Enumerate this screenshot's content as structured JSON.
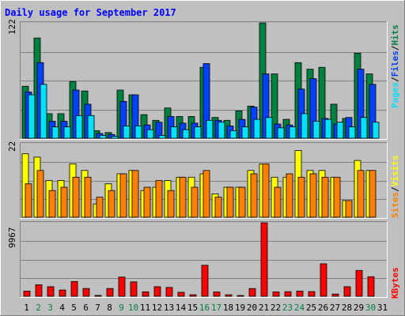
{
  "chart_data": [
    {
      "type": "bar",
      "title": "Daily usage for September 2017",
      "panel": "hits-files-pages",
      "ymax_label": "122",
      "ylim": [
        0,
        122
      ],
      "categories": [
        "1",
        "2",
        "3",
        "4",
        "5",
        "6",
        "7",
        "8",
        "9",
        "10",
        "11",
        "12",
        "13",
        "14",
        "15",
        "16",
        "17",
        "18",
        "19",
        "20",
        "21",
        "22",
        "23",
        "24",
        "25",
        "26",
        "27",
        "28",
        "29",
        "30",
        "31"
      ],
      "weekend_days": [
        "2",
        "3",
        "9",
        "10",
        "16",
        "17",
        "23",
        "24",
        "30"
      ],
      "series": [
        {
          "name": "Hits",
          "color": "#008040",
          "values": [
            55,
            106,
            26,
            26,
            60,
            50,
            8,
            6,
            51,
            46,
            25,
            19,
            32,
            23,
            23,
            75,
            22,
            19,
            29,
            34,
            122,
            68,
            20,
            80,
            73,
            75,
            36,
            21,
            90,
            68,
            0
          ]
        },
        {
          "name": "Files",
          "color": "#0040ff",
          "values": [
            49,
            80,
            18,
            18,
            51,
            36,
            5,
            4,
            39,
            46,
            14,
            17,
            23,
            16,
            16,
            79,
            19,
            13,
            20,
            33,
            68,
            15,
            14,
            52,
            63,
            21,
            15,
            22,
            73,
            57,
            0
          ]
        },
        {
          "name": "Pages",
          "color": "#00e0ff",
          "values": [
            46,
            57,
            12,
            12,
            24,
            24,
            3,
            2,
            13,
            13,
            9,
            3,
            12,
            9,
            12,
            19,
            17,
            8,
            12,
            20,
            22,
            11,
            12,
            26,
            18,
            20,
            17,
            12,
            22,
            17,
            0
          ]
        }
      ]
    },
    {
      "type": "bar",
      "panel": "visits-sites",
      "ymax_label": "22",
      "ylim": [
        0,
        22
      ],
      "categories": [
        "1",
        "2",
        "3",
        "4",
        "5",
        "6",
        "7",
        "8",
        "9",
        "10",
        "11",
        "12",
        "13",
        "14",
        "15",
        "16",
        "17",
        "18",
        "19",
        "20",
        "21",
        "22",
        "23",
        "24",
        "25",
        "26",
        "27",
        "28",
        "29",
        "30",
        "31"
      ],
      "series": [
        {
          "name": "Visits",
          "color": "#ffff00",
          "values": [
            19,
            18,
            11,
            11,
            16,
            14,
            4,
            10,
            13,
            14,
            8,
            9,
            11,
            12,
            12,
            13,
            7,
            9,
            9,
            14,
            16,
            12,
            12,
            20,
            14,
            14,
            12,
            5,
            17,
            14,
            0
          ]
        },
        {
          "name": "Sites",
          "color": "#ff8000",
          "values": [
            10,
            14,
            8,
            9,
            12,
            12,
            6,
            8,
            13,
            14,
            9,
            11,
            8,
            12,
            9,
            14,
            6,
            9,
            9,
            13,
            16,
            9,
            13,
            12,
            13,
            12,
            12,
            5,
            14,
            14,
            0
          ]
        }
      ]
    },
    {
      "type": "bar",
      "panel": "kbytes",
      "ymax_label": "9967",
      "ylim": [
        0,
        9967
      ],
      "categories": [
        "1",
        "2",
        "3",
        "4",
        "5",
        "6",
        "7",
        "8",
        "9",
        "10",
        "11",
        "12",
        "13",
        "14",
        "15",
        "16",
        "17",
        "18",
        "19",
        "20",
        "21",
        "22",
        "23",
        "24",
        "25",
        "26",
        "27",
        "28",
        "29",
        "30",
        "31"
      ],
      "series": [
        {
          "name": "KBytes",
          "color": "#ff0000",
          "values": [
            700,
            1550,
            1300,
            850,
            2000,
            1050,
            120,
            1050,
            2600,
            1950,
            600,
            1300,
            1200,
            540,
            200,
            4200,
            580,
            200,
            100,
            1050,
            9967,
            590,
            620,
            700,
            630,
            4400,
            300,
            1300,
            3500,
            2650,
            0
          ]
        }
      ]
    }
  ],
  "colors": {
    "background": "#c0c0c0",
    "title": "#0000ff",
    "weekday_label": "#000000",
    "weekend_label": "#008040"
  }
}
